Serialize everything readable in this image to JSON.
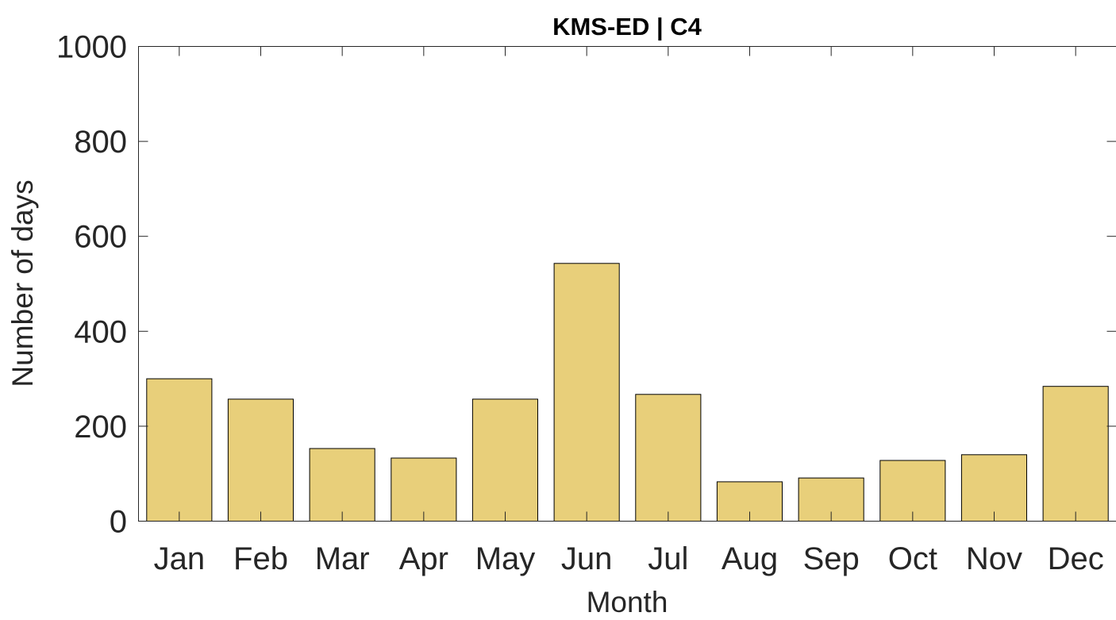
{
  "chart_data": {
    "type": "bar",
    "title": "KMS-ED | C4",
    "xlabel": "Month",
    "ylabel": "Number of days",
    "categories": [
      "Jan",
      "Feb",
      "Mar",
      "Apr",
      "May",
      "Jun",
      "Jul",
      "Aug",
      "Sep",
      "Oct",
      "Nov",
      "Dec"
    ],
    "values": [
      300,
      257,
      153,
      133,
      257,
      543,
      267,
      83,
      91,
      128,
      140,
      284
    ],
    "ylim": [
      0,
      1000
    ],
    "yticks": [
      0,
      200,
      400,
      600,
      800,
      1000
    ],
    "bar_color": "#e8cf7a",
    "grid": false,
    "box": true
  }
}
